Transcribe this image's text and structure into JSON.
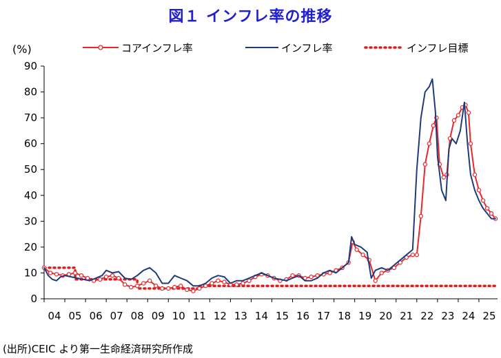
{
  "title": "図１ インフレ率の推移",
  "unit_label": "(%)",
  "source": "(出所)CEIC より第一生命経済研究所作成",
  "colors": {
    "core": "#e8262b",
    "headline": "#1f3a7a",
    "target": "#e01b1b",
    "axis": "#000000"
  },
  "chart_data": {
    "type": "line",
    "title": "図１ インフレ率の推移",
    "ylabel": "(%)",
    "xlabel": "",
    "ylim": [
      0,
      90
    ],
    "y_ticks": [
      "0",
      "10",
      "20",
      "30",
      "40",
      "50",
      "60",
      "70",
      "80",
      "90"
    ],
    "x_ticks": [
      "04",
      "05",
      "06",
      "07",
      "08",
      "09",
      "10",
      "11",
      "12",
      "13",
      "14",
      "15",
      "16",
      "17",
      "18",
      "19",
      "20",
      "21",
      "22",
      "23",
      "24",
      "25"
    ],
    "grid": false,
    "legend_position": "top",
    "series": [
      {
        "name": "コアインフレ率",
        "style": "line-with-circle-markers",
        "x": [
          2004.0,
          2004.3,
          2004.6,
          2004.9,
          2005.2,
          2005.5,
          2005.8,
          2006.1,
          2006.4,
          2006.7,
          2007.0,
          2007.3,
          2007.6,
          2007.9,
          2008.2,
          2008.5,
          2008.8,
          2009.1,
          2009.4,
          2009.7,
          2010.0,
          2010.3,
          2010.6,
          2010.9,
          2011.2,
          2011.5,
          2011.8,
          2012.1,
          2012.4,
          2012.7,
          2013.0,
          2013.3,
          2013.6,
          2013.9,
          2014.2,
          2014.5,
          2014.8,
          2015.1,
          2015.4,
          2015.7,
          2016.0,
          2016.3,
          2016.6,
          2016.9,
          2017.2,
          2017.5,
          2017.8,
          2018.1,
          2018.4,
          2018.7,
          2018.9,
          2019.1,
          2019.4,
          2019.7,
          2020.0,
          2020.3,
          2020.6,
          2020.9,
          2021.2,
          2021.5,
          2021.8,
          2022.0,
          2022.2,
          2022.4,
          2022.6,
          2022.8,
          2022.95,
          2023.1,
          2023.3,
          2023.45,
          2023.6,
          2023.8,
          2024.0,
          2024.2,
          2024.35,
          2024.5,
          2024.6,
          2024.8,
          2025.0,
          2025.2,
          2025.4,
          2025.6,
          2025.8
        ],
        "y": [
          12,
          10,
          9.5,
          9,
          9.5,
          10,
          9,
          8,
          7,
          7.5,
          8.5,
          9,
          8,
          5.5,
          4.5,
          5,
          6,
          7,
          5,
          4,
          4,
          4.5,
          5,
          3.5,
          3,
          4,
          5,
          6,
          7,
          6.5,
          5.5,
          5.5,
          6,
          7,
          8.5,
          9.5,
          9,
          8,
          7,
          7.5,
          9,
          9,
          8,
          8.5,
          9,
          9.5,
          10,
          11,
          12,
          14,
          22,
          19,
          17,
          15,
          7,
          10,
          11,
          12,
          14,
          16,
          17,
          17,
          32,
          52,
          60,
          67,
          70,
          52,
          47,
          48,
          62,
          69,
          71,
          74,
          75,
          72,
          60,
          48,
          42,
          38,
          35,
          33,
          31
        ]
      },
      {
        "name": "インフレ率",
        "style": "line",
        "x": [
          2004.0,
          2004.2,
          2004.4,
          2004.6,
          2004.8,
          2005.0,
          2005.3,
          2005.6,
          2005.9,
          2006.2,
          2006.5,
          2006.8,
          2007.0,
          2007.3,
          2007.6,
          2007.9,
          2008.2,
          2008.5,
          2008.8,
          2009.1,
          2009.4,
          2009.7,
          2010.0,
          2010.3,
          2010.6,
          2010.9,
          2011.2,
          2011.5,
          2011.8,
          2012.1,
          2012.4,
          2012.7,
          2013.0,
          2013.3,
          2013.6,
          2013.9,
          2014.2,
          2014.5,
          2014.8,
          2015.1,
          2015.4,
          2015.7,
          2016.0,
          2016.3,
          2016.6,
          2016.9,
          2017.2,
          2017.5,
          2017.8,
          2018.1,
          2018.4,
          2018.7,
          2018.85,
          2019.0,
          2019.3,
          2019.6,
          2019.8,
          2020.0,
          2020.3,
          2020.6,
          2020.9,
          2021.2,
          2021.5,
          2021.8,
          2022.0,
          2022.2,
          2022.4,
          2022.6,
          2022.75,
          2022.9,
          2023.0,
          2023.2,
          2023.4,
          2023.55,
          2023.7,
          2023.9,
          2024.1,
          2024.3,
          2024.45,
          2024.6,
          2024.8,
          2025.0,
          2025.2,
          2025.4,
          2025.6,
          2025.8
        ],
        "y": [
          12,
          9,
          7.5,
          7,
          8.5,
          9,
          8.5,
          8,
          7.5,
          7,
          8,
          9,
          11,
          10,
          10.5,
          8,
          7.5,
          9,
          11,
          12,
          10,
          6,
          6,
          9,
          8,
          7,
          5,
          5,
          6,
          8,
          9,
          8.5,
          6,
          7,
          7,
          8,
          9,
          10,
          9,
          8,
          7.5,
          7,
          8,
          9,
          7,
          7,
          8,
          10,
          11,
          10,
          12,
          14,
          24,
          21,
          20,
          18,
          8,
          11,
          12,
          11,
          13,
          15,
          17,
          19,
          50,
          70,
          80,
          82,
          85,
          72,
          55,
          42,
          38,
          58,
          62,
          60,
          65,
          76,
          60,
          48,
          42,
          38,
          35,
          33,
          31,
          31
        ]
      },
      {
        "name": "インフレ目標",
        "style": "dotted",
        "x": [
          2004.0,
          2005.5,
          2005.5,
          2008.5,
          2008.5,
          2011.5,
          2011.5,
          2025.8
        ],
        "y": [
          12,
          12,
          7.5,
          7.5,
          4,
          4,
          5,
          5
        ]
      }
    ]
  }
}
